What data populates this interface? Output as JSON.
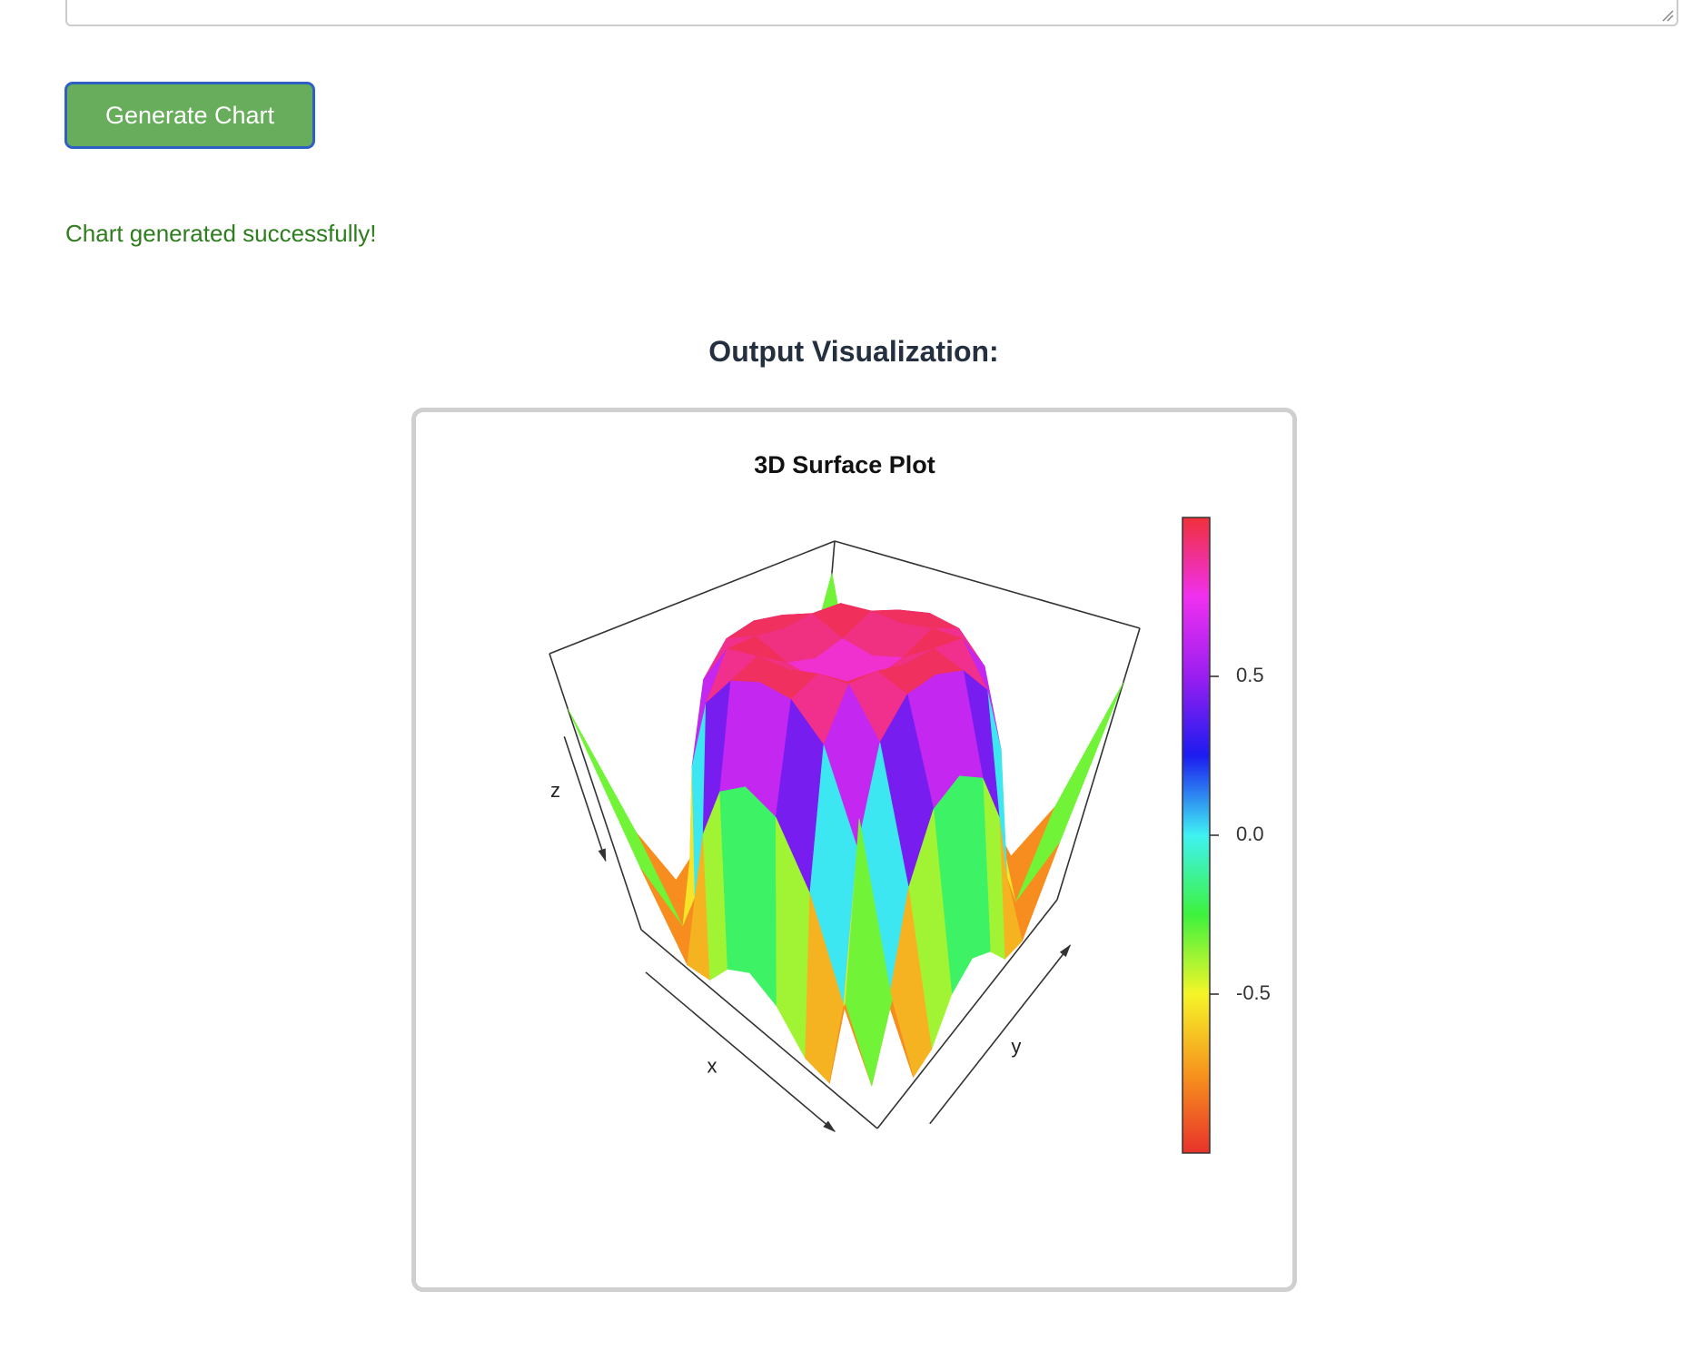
{
  "form": {
    "button": "Generate Chart",
    "status": "Chart generated successfully!"
  },
  "output": {
    "heading": "Output Visualization:"
  },
  "chart_data": {
    "type": "surface",
    "title": "3D Surface Plot",
    "xlabel": "x",
    "ylabel": "y",
    "zlabel": "z",
    "x": [
      -1.75,
      -1.4,
      -1.05,
      -0.7,
      -0.35,
      0,
      0.35,
      0.7,
      1.05,
      1.4,
      1.75
    ],
    "y": [
      -1.75,
      -1.4,
      -1.05,
      -0.7,
      -0.35,
      0,
      0.35,
      0.7,
      1.05,
      1.4,
      1.75
    ],
    "xlim": [
      -1.75,
      1.75
    ],
    "ylim": [
      -1.75,
      1.75
    ],
    "z": [
      [
        0.6,
        -0.44,
        -0.97,
        -0.94,
        -0.75,
        -0.66,
        -0.75,
        -0.94,
        -0.97,
        -0.44,
        0.6
      ],
      [
        -0.44,
        -1.0,
        -0.66,
        -0.11,
        0.26,
        0.37,
        0.26,
        -0.11,
        -0.66,
        -1.0,
        -0.44
      ],
      [
        -0.97,
        -0.66,
        0.14,
        0.68,
        0.9,
        0.95,
        0.9,
        0.68,
        0.14,
        -0.66,
        -0.97
      ],
      [
        -0.94,
        -0.11,
        0.68,
        0.98,
        0.99,
        0.96,
        0.99,
        0.98,
        0.68,
        -0.11,
        -0.94
      ],
      [
        -0.75,
        0.26,
        0.9,
        0.99,
        0.86,
        0.8,
        0.86,
        0.99,
        0.9,
        0.26,
        -0.75
      ],
      [
        -0.66,
        0.37,
        0.95,
        0.96,
        0.8,
        0.72,
        0.8,
        0.96,
        0.95,
        0.37,
        -0.66
      ],
      [
        -0.75,
        0.26,
        0.9,
        0.99,
        0.86,
        0.8,
        0.86,
        0.99,
        0.9,
        0.26,
        -0.75
      ],
      [
        -0.94,
        -0.11,
        0.68,
        0.98,
        0.99,
        0.96,
        0.99,
        0.98,
        0.68,
        -0.11,
        -0.94
      ],
      [
        -0.97,
        -0.66,
        0.14,
        0.68,
        0.9,
        0.95,
        0.9,
        0.68,
        0.14,
        -0.66,
        -0.97
      ],
      [
        -0.44,
        -1.0,
        -0.66,
        -0.11,
        0.26,
        0.37,
        0.26,
        -0.11,
        -0.66,
        -1.0,
        -0.44
      ],
      [
        0.6,
        -0.44,
        -0.97,
        -0.94,
        -0.75,
        -0.66,
        -0.75,
        -0.94,
        -0.97,
        -0.44,
        0.6
      ]
    ],
    "zlim": [
      -1,
      1
    ],
    "zticks": [
      -0.5,
      {
        "value": 0,
        "label": "0.0"
      },
      0.5
    ],
    "colorscale": [
      "#e8322a",
      "#f7941d",
      "#f5f529",
      "#3ef23e",
      "#3ff2f2",
      "#1c1cf0",
      "#9a1ef0",
      "#f030f0",
      "#f0303a"
    ]
  }
}
